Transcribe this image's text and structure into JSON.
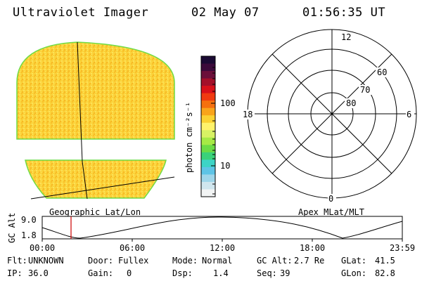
{
  "header": {
    "title": "Ultraviolet Imager",
    "date": "02 May 07",
    "time": "01:56:35 UT"
  },
  "left_panel": {
    "caption": "Geographic Lat/Lon"
  },
  "right_panel": {
    "caption": "Apex MLat/MLT",
    "mlt_labels": {
      "top": "12",
      "bottom": "0",
      "left": "18",
      "right": "6"
    },
    "lat_labels": [
      "60",
      "70",
      "80"
    ]
  },
  "colorbar": {
    "unit_label": "photon cm⁻²s⁻¹",
    "tick_labels": [
      "100",
      "10"
    ],
    "colors": [
      "#1a0a33",
      "#3b0a3a",
      "#6b0f3a",
      "#a3102a",
      "#d8111a",
      "#f03a10",
      "#f5700e",
      "#f9a41a",
      "#fbd232",
      "#fff36b",
      "#d8f264",
      "#a6ea45",
      "#6cdc45",
      "#3ad27a",
      "#3dd4c6",
      "#5ec4e6",
      "#9fd6ea",
      "#d0e6ee",
      "#f2f4f4"
    ]
  },
  "altitude_plot": {
    "ylabel": "GC Alt",
    "y_ticks": [
      "9.0",
      "1.8"
    ],
    "x_ticks": [
      "00:00",
      "06:00",
      "12:00",
      "18:00",
      "23:59"
    ],
    "marker_color": "#cc0000"
  },
  "info": {
    "flt_label": "Flt:",
    "flt_value": "UNKNOWN",
    "ip_label": "IP:",
    "ip_value": "36.0",
    "door_label": "Door:",
    "door_value": "Fullex",
    "gain_label": "Gain:",
    "gain_value": "0",
    "mode_label": "Mode:",
    "mode_value": "Normal",
    "dsp_label": "Dsp:",
    "dsp_value": "1.4",
    "gcalt_label": "GC Alt:",
    "gcalt_value": "2.7 Re",
    "seq_label": "Seq:",
    "seq_value": "39",
    "glat_label": "GLat:",
    "glat_value": "41.5",
    "glon_label": "GLon:",
    "glon_value": "82.8"
  },
  "image_colors": {
    "fill": "#fbd33a",
    "edge": "#6fdc46"
  }
}
